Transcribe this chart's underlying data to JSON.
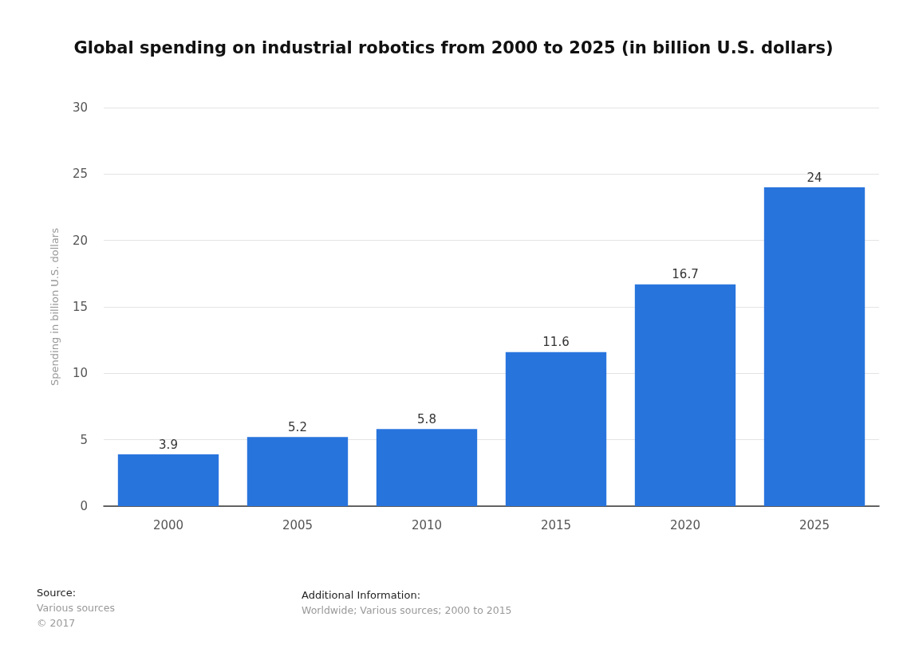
{
  "chart_data": {
    "type": "bar",
    "title": "Global spending on industrial robotics from 2000 to 2025 (in billion U.S. dollars)",
    "ylabel": "Spending in billion U.S. dollars",
    "categories": [
      "2000",
      "2005",
      "2010",
      "2015",
      "2020",
      "2025"
    ],
    "values": [
      3.9,
      5.2,
      5.8,
      11.6,
      16.7,
      24
    ],
    "color": "#2874dd",
    "ylim": [
      0,
      30
    ],
    "yticks": [
      0,
      5,
      10,
      15,
      20,
      25,
      30
    ],
    "grid": "y",
    "data_labels": true,
    "annotations": [
      "Source:",
      "Various sources",
      "© 2017",
      "Additional Information:",
      "Worldwide; Various sources; 2000 to 2015"
    ]
  }
}
